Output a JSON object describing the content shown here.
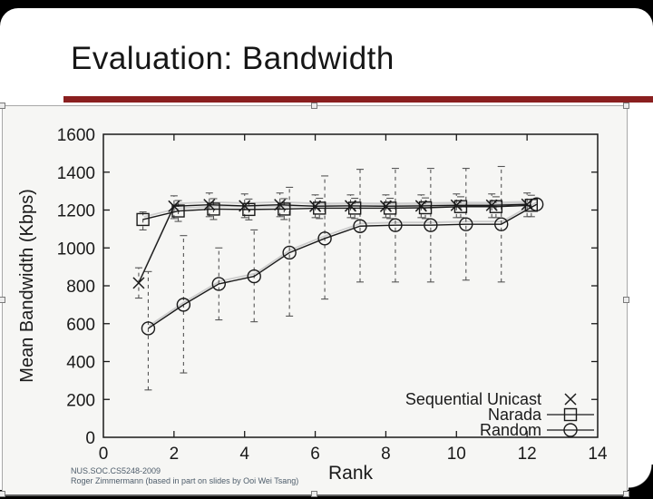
{
  "slide": {
    "title": "Evaluation: Bandwidth",
    "footer_line1": "NUS.SOC.CS5248-2009",
    "footer_line2": "Roger Zimmermann (based in part on slides by Ooi Wei Tsang)",
    "accent_color": "#8a1f1f"
  },
  "chart_data": {
    "type": "line",
    "title": "",
    "xlabel": "Rank",
    "ylabel": "Mean Bandwidth (Kbps)",
    "xlim": [
      0,
      14
    ],
    "ylim": [
      0,
      1600
    ],
    "xticks": [
      0,
      2,
      4,
      6,
      8,
      10,
      12,
      14
    ],
    "yticks": [
      0,
      200,
      400,
      600,
      800,
      1000,
      1200,
      1400,
      1600
    ],
    "grid": false,
    "legend_position": "bottom-right",
    "x": [
      1,
      2,
      3,
      4,
      5,
      6,
      7,
      8,
      9,
      10,
      11,
      12
    ],
    "series": [
      {
        "name": "Sequential Unicast",
        "marker": "x",
        "x_offset": 0.0,
        "values": [
          815,
          1220,
          1228,
          1222,
          1228,
          1220,
          1222,
          1220,
          1222,
          1225,
          1225,
          1230
        ],
        "err_low": [
          735,
          1155,
          1165,
          1160,
          1165,
          1160,
          1160,
          1160,
          1160,
          1160,
          1160,
          1165
        ],
        "err_high": [
          895,
          1275,
          1290,
          1285,
          1290,
          1280,
          1280,
          1280,
          1280,
          1285,
          1285,
          1290
        ]
      },
      {
        "name": "Narada",
        "marker": "square",
        "x_offset": 0.12,
        "values": [
          1150,
          1195,
          1205,
          1203,
          1205,
          1210,
          1210,
          1210,
          1212,
          1218,
          1218,
          1225
        ],
        "err_low": [
          1095,
          1140,
          1150,
          1148,
          1150,
          1155,
          1155,
          1155,
          1155,
          1160,
          1160,
          1165
        ],
        "err_high": [
          1190,
          1250,
          1260,
          1258,
          1260,
          1262,
          1262,
          1262,
          1264,
          1270,
          1270,
          1278
        ]
      },
      {
        "name": "Random",
        "marker": "circle",
        "x_offset": 0.27,
        "values": [
          575,
          700,
          810,
          850,
          975,
          1050,
          1115,
          1120,
          1120,
          1125,
          1125,
          1230
        ],
        "err_low": [
          250,
          340,
          620,
          610,
          640,
          730,
          820,
          820,
          820,
          830,
          820,
          null
        ],
        "err_high": [
          875,
          1065,
          1000,
          1095,
          1320,
          1380,
          1415,
          1420,
          1420,
          1420,
          1430,
          null
        ]
      }
    ]
  }
}
